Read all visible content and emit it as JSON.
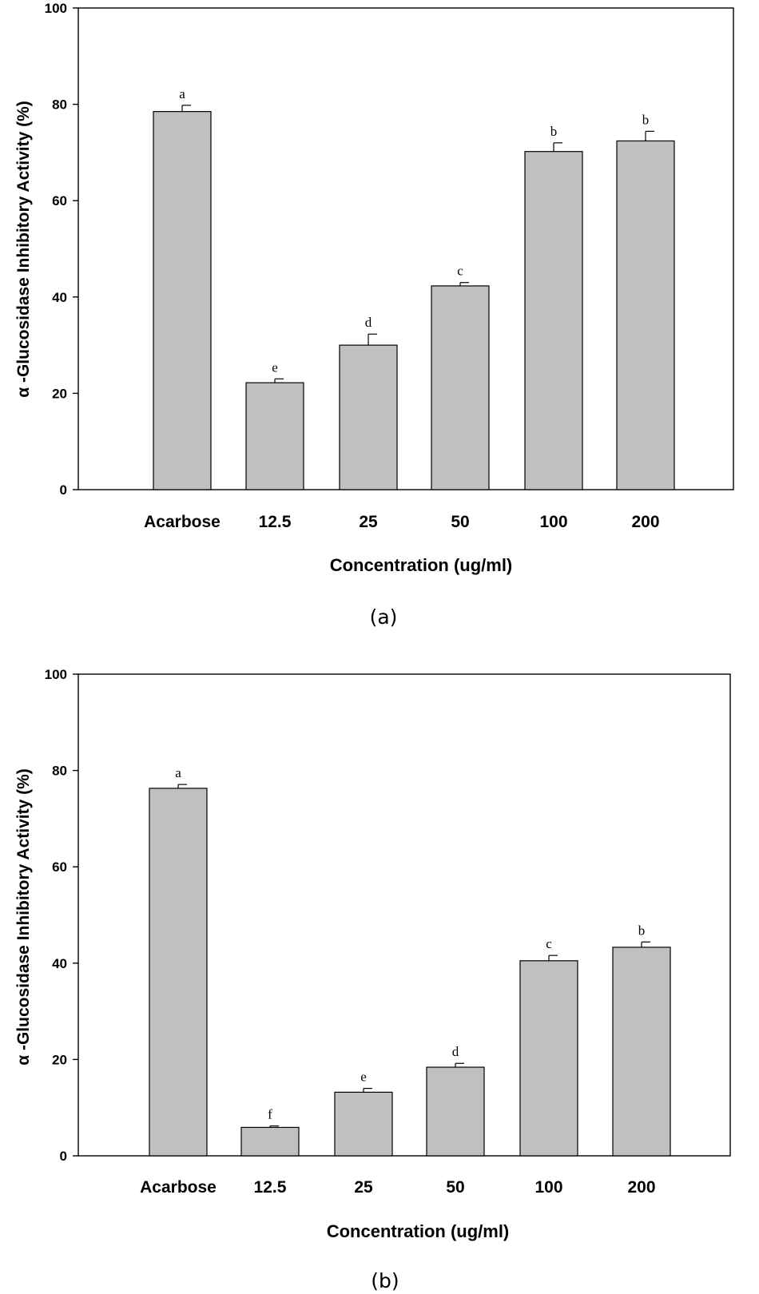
{
  "chart_data": [
    {
      "type": "bar",
      "panel_label": "(a)",
      "categories": [
        "Acarbose",
        "12.5",
        "25",
        "50",
        "100",
        "200"
      ],
      "values": [
        78.5,
        22.2,
        30.0,
        42.3,
        70.2,
        72.4
      ],
      "errors": [
        1.3,
        0.8,
        2.3,
        0.7,
        1.8,
        2.0
      ],
      "significance": [
        "a",
        "e",
        "d",
        "c",
        "b",
        "b"
      ],
      "title": "",
      "xlabel": "Concentration (ug/ml)",
      "ylabel": "α -Glucosidase Inhibitory Activity (%)",
      "ylim": [
        0,
        100
      ],
      "yticks": [
        0,
        20,
        40,
        60,
        80,
        100
      ],
      "bar_color": "#c0c0c0"
    },
    {
      "type": "bar",
      "panel_label": "(b)",
      "categories": [
        "Acarbose",
        "12.5",
        "25",
        "50",
        "100",
        "200"
      ],
      "values": [
        76.3,
        5.9,
        13.2,
        18.4,
        40.5,
        43.3
      ],
      "errors": [
        0.8,
        0.3,
        0.8,
        0.8,
        1.1,
        1.1
      ],
      "significance": [
        "a",
        "f",
        "e",
        "d",
        "c",
        "b"
      ],
      "title": "",
      "xlabel": "Concentration (ug/ml)",
      "ylabel": "α -Glucosidase Inhibitory Activity (%)",
      "ylim": [
        0,
        100
      ],
      "yticks": [
        0,
        20,
        40,
        60,
        80,
        100
      ],
      "bar_color": "#c0c0c0"
    }
  ]
}
